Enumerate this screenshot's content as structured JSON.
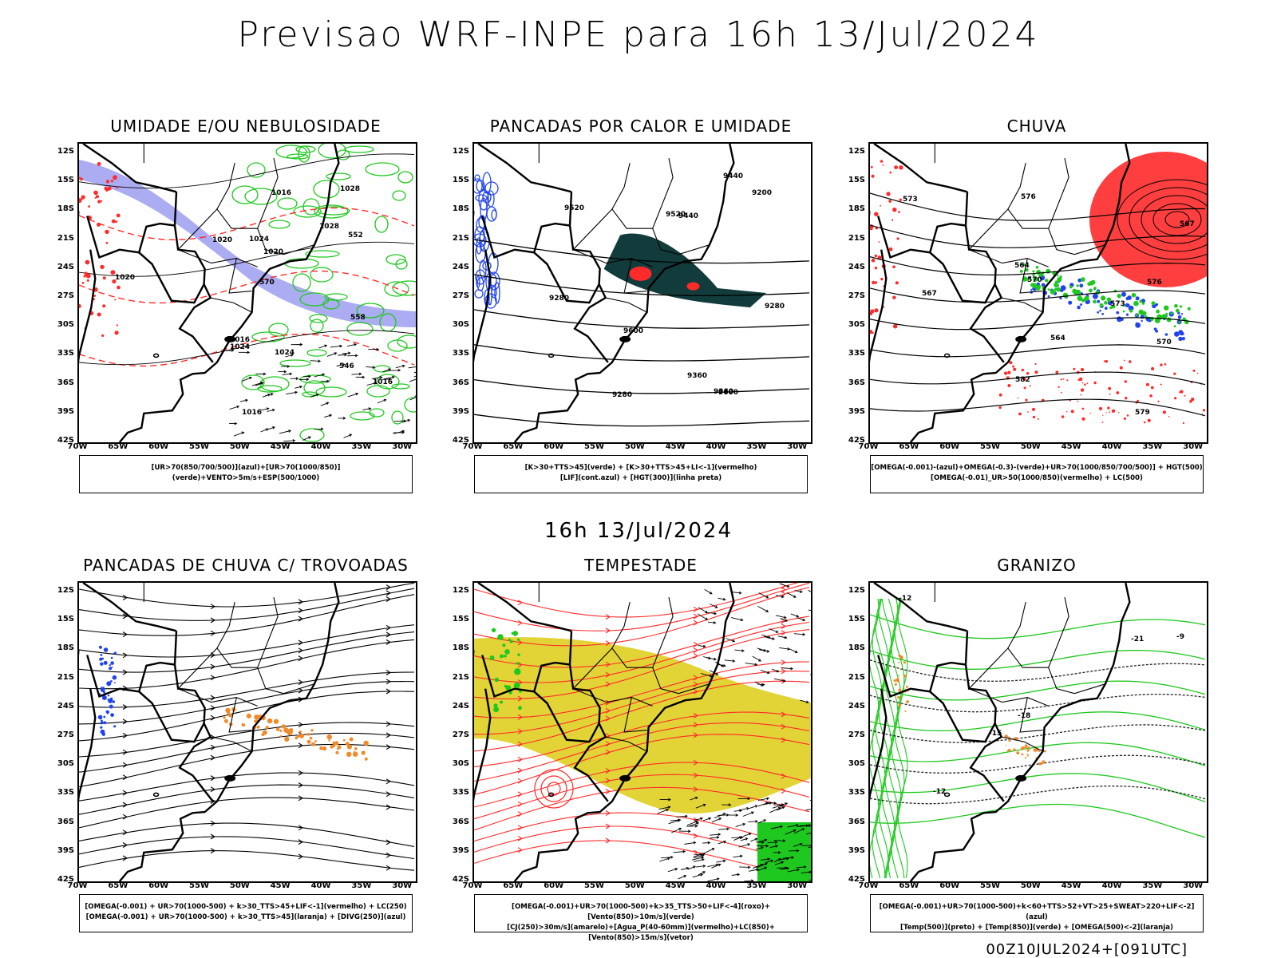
{
  "header": {
    "title": "Previsao WRF-INPE  para 16h 13/Jul/2024",
    "mid_title": "16h 13/Jul/2024",
    "run_stamp": "00Z10JUL2024+[091UTC]"
  },
  "axes": {
    "lat_ticks": [
      "12S",
      "15S",
      "18S",
      "21S",
      "24S",
      "27S",
      "30S",
      "33S",
      "36S",
      "39S",
      "42S"
    ],
    "lon_ticks": [
      "70W",
      "65W",
      "60W",
      "55W",
      "50W",
      "45W",
      "40W",
      "35W",
      "30W"
    ]
  },
  "panels": [
    {
      "title": "UMIDADE E/OU NEBULOSIDADE",
      "legend": [
        "[UR>70(850/700/500)](azul)+[UR>70(1000/850)](verde)+VENTO>5m/s+ESP(500/1000)"
      ],
      "contour_labels": [
        "1016",
        "1020",
        "1016",
        "1016",
        "1020",
        "1024",
        "1028",
        "1024",
        "1020",
        "1024",
        "1028",
        "1016",
        "570",
        "546",
        "558",
        "552"
      ]
    },
    {
      "title": "PANCADAS POR CALOR E UMIDADE",
      "legend": [
        "[K>30+TTS>45](verde) + [K>30+TTS>45+LI<-1](vermelho)",
        "[LIF](cont.azul) + [HGT(300)](linha preta)"
      ],
      "contour_labels": [
        "9600",
        "9520",
        "9440",
        "9600",
        "9520",
        "9440",
        "9360",
        "9280",
        "9360",
        "9280",
        "9200",
        "9280"
      ]
    },
    {
      "title": "CHUVA",
      "legend": [
        "[OMEGA(-0.001)-(azul)+OMEGA(-0.3)-(verde)+UR>70(1000/850/700/500)] + HGT(500)",
        "[OMEGA(-0.01)_UR>50(1000/850)(vermelho) + LC(500)"
      ],
      "contour_labels": [
        "582",
        "579",
        "576",
        "573",
        "570",
        "567",
        "564",
        "576",
        "573",
        "570",
        "567",
        "564"
      ]
    },
    {
      "title": "PANCADAS DE CHUVA C/ TROVOADAS",
      "legend": [
        "[OMEGA(-0.001) + UR>70(1000-500) + k>30_TTS>45+LIF<-1](vermelho) + LC(250)",
        "[OMEGA(-0.001) + UR>70(1000-500) + k>30_TTS>45](laranja) + [DIVG(250)](azul)"
      ],
      "contour_labels": []
    },
    {
      "title": "TEMPESTADE",
      "legend": [
        "[OMEGA(-0.001)+UR>70(1000-500)+k>35_TTS>50+LIF<-4](roxo)+[Vento(850)>10m/s](verde)",
        "[CJ(250)>30m/s](amarelo)+[Agua_P(40-60mm)](vermelho)+LC(850)+[Vento(850)>15m/s](vetor)"
      ],
      "contour_labels": []
    },
    {
      "title": "GRANIZO",
      "legend": [
        "[OMEGA(-0.001)+UR>70(1000-500)+k<60+TTS>52+VT>25+SWEAT>220+LIF<-2](azul)",
        "[Temp(500)](preto) + [Temp(850)](verde) + [OMEGA(500)<-2](laranja)"
      ],
      "contour_labels": [
        "-9",
        "-12",
        "-15",
        "-18",
        "-21",
        "-12"
      ]
    }
  ],
  "colors": {
    "contour_black": "#000000",
    "red": "#ff2a2a",
    "green": "#1ec81e",
    "blue": "#2244ee",
    "lavender": "#9d9df0",
    "dark_teal": "#123c3c",
    "yellow": "#e2d436",
    "orange": "#f08a2a"
  }
}
